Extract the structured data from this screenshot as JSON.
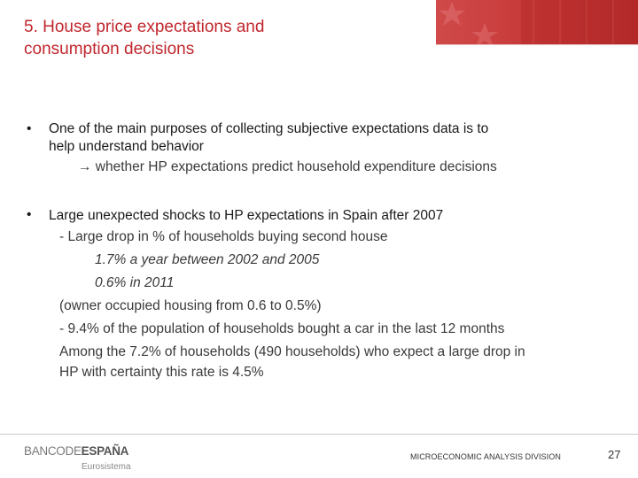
{
  "slide": {
    "title_line1": "5. House price expectations and",
    "title_line2": "consumption decisions",
    "bullet_symbol": "•",
    "bullets": [
      {
        "line1": "One of the main purposes of collecting subjective expectations data is to",
        "line2": "help understand behavior",
        "line3": "→ whether HP expectations predict household expenditure decisions"
      },
      {
        "line1": "Large unexpected shocks to HP expectations in Spain after 2007",
        "line2": "- Large drop in % of households buying second house",
        "line3": "1.7% a year between 2002 and 2005",
        "line4": "0.6% in 2011",
        "line5": "(owner occupied housing from 0.6 to 0.5%)",
        "line6": "- 9.4% of the population of households bought a car in the last 12 months",
        "line7": "Among the 7.2% of households (490 households) who expect a large drop in",
        "line8": "HP with certainty this rate is 4.5%"
      }
    ]
  },
  "footer": {
    "logo_part1": "BANCODE",
    "logo_part2": "ESPAÑA",
    "logo_sub": "Eurosistema",
    "division": "MICROECONOMIC ANALYSIS DIVISION",
    "page_number": "27"
  },
  "colors": {
    "title": "#c0272d",
    "banner": "#c83a3a"
  },
  "icons": {
    "banner_decoration": "star-icon"
  }
}
